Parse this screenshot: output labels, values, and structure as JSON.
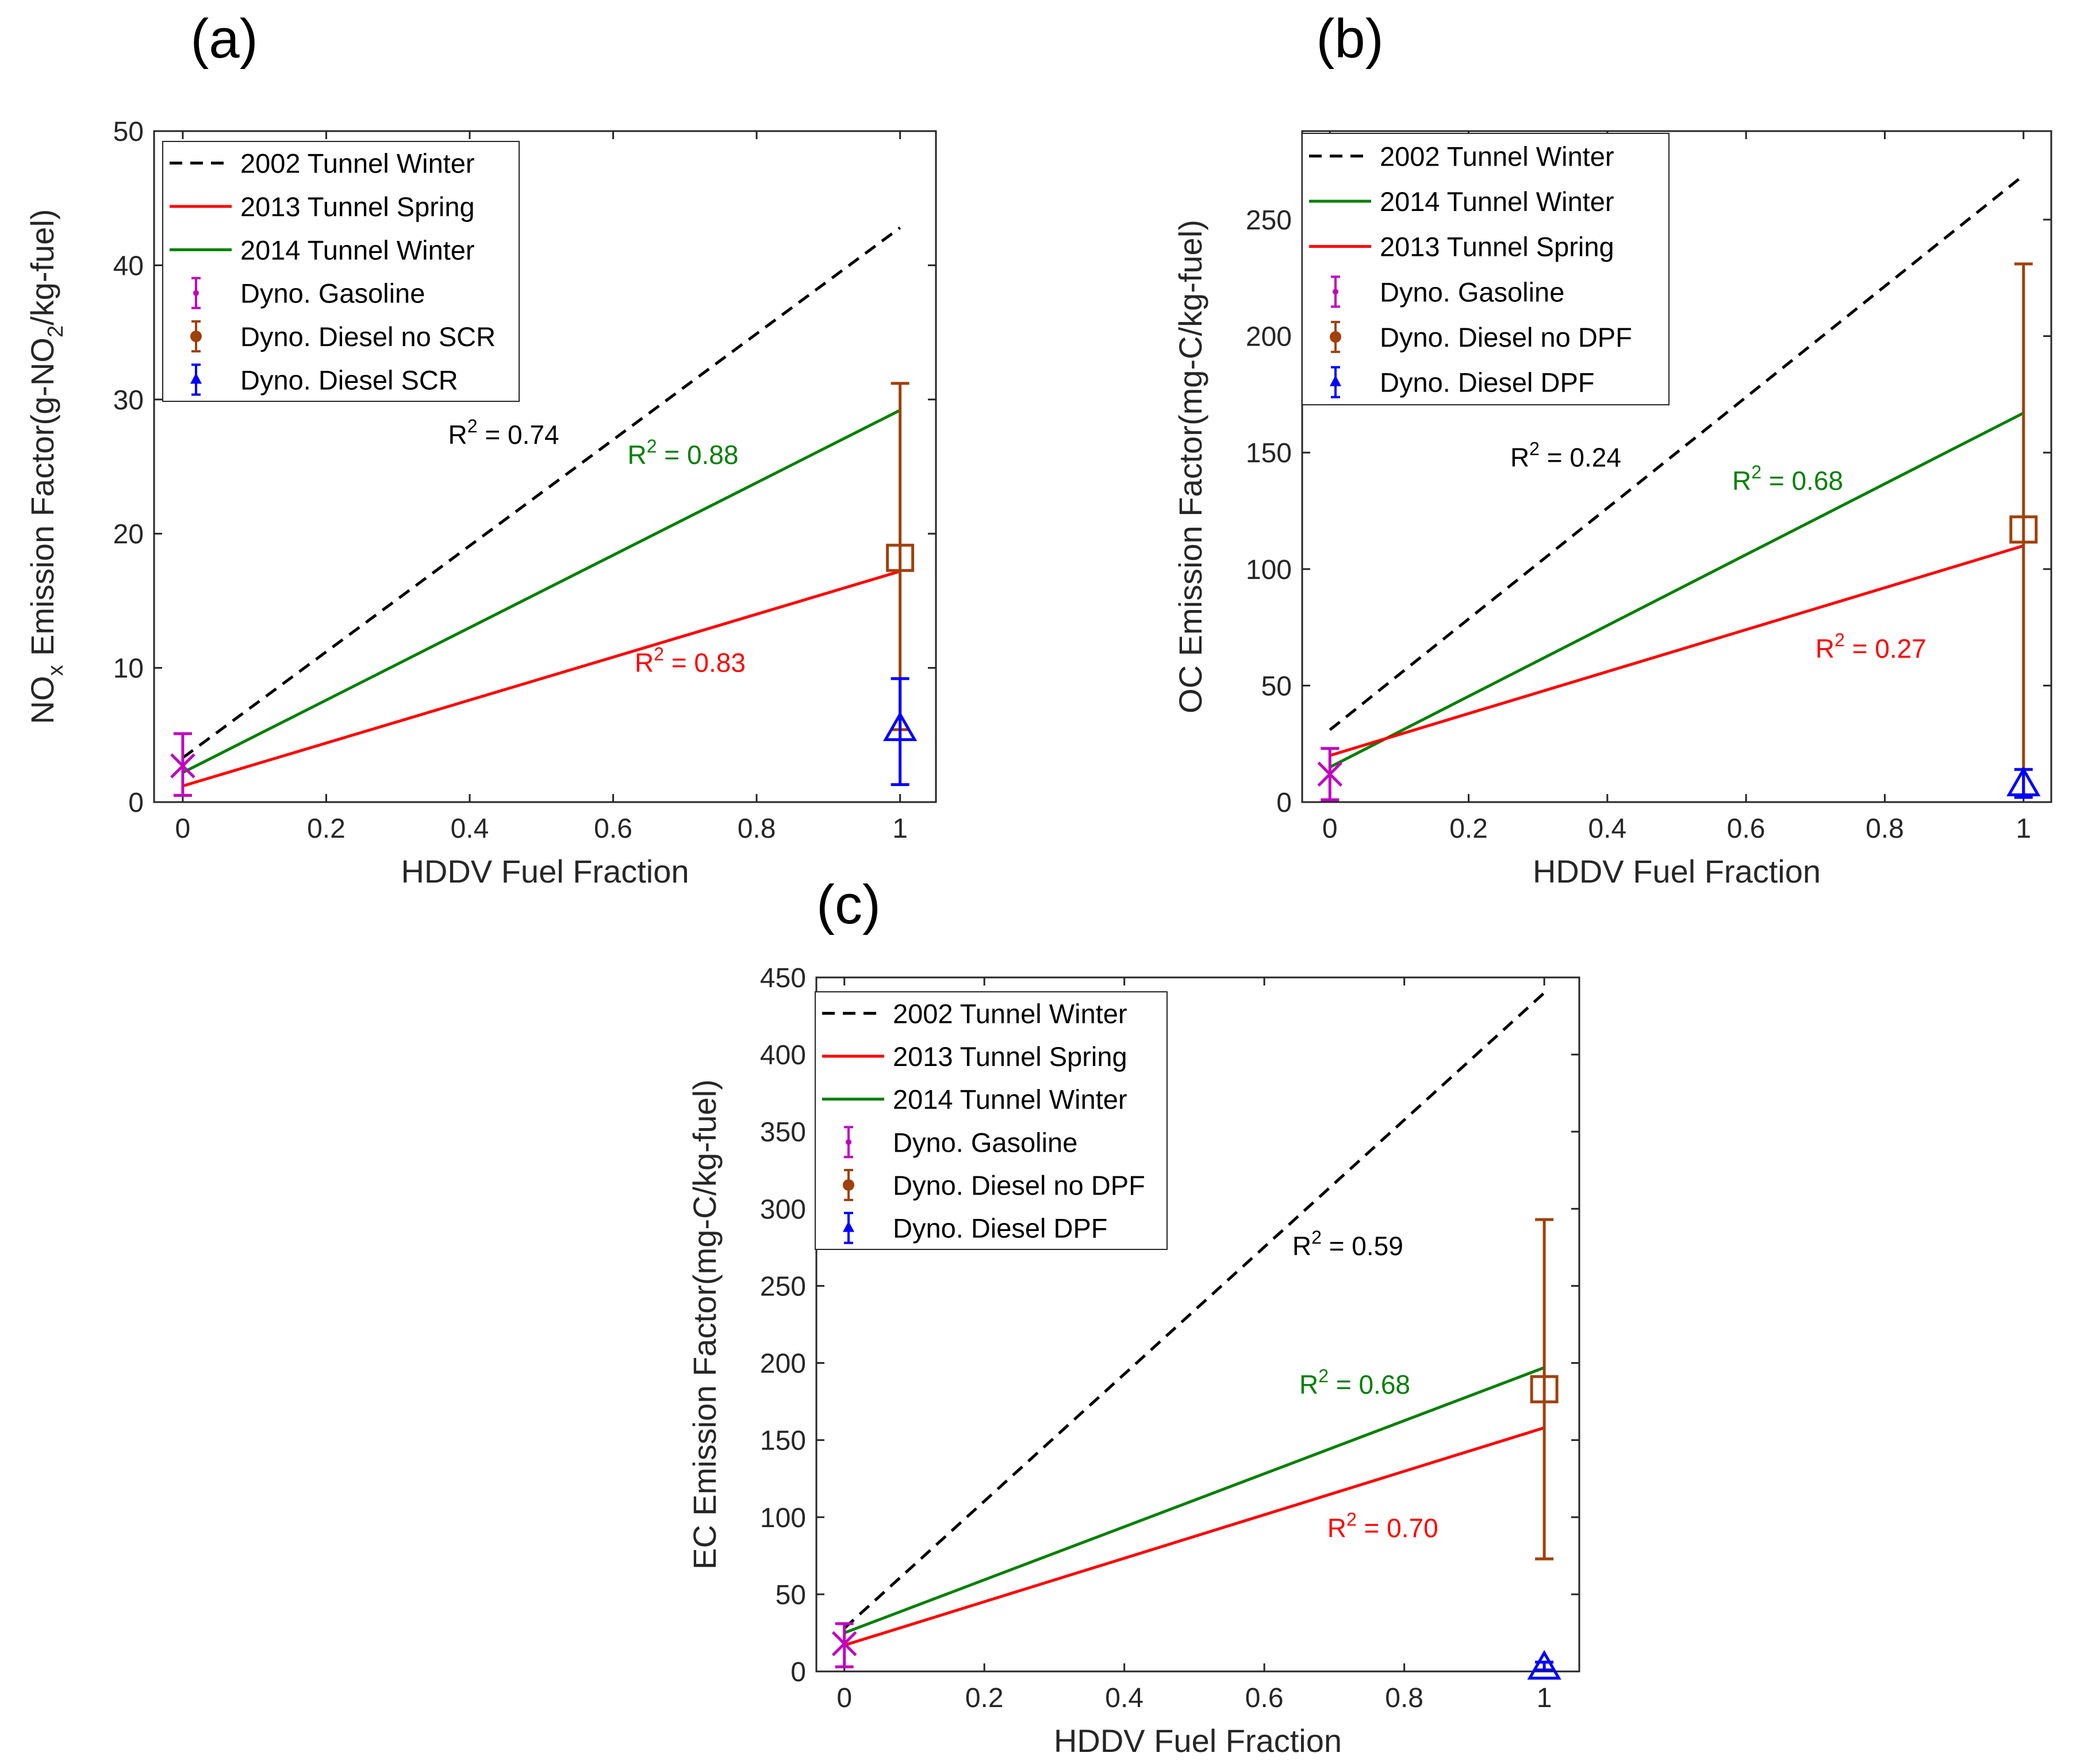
{
  "figure": {
    "panels": [
      "a",
      "b",
      "c"
    ]
  },
  "chart_data": [
    {
      "id": "a",
      "panel_label": "(a)",
      "type": "line",
      "xlabel": "HDDV Fuel Fraction",
      "ylabel_parts": {
        "pre": "NO",
        "sub1": "x",
        "mid": " Emission Factor(g-NO",
        "sub2": "2",
        "post": "/kg-fuel)"
      },
      "xlim": [
        -0.04,
        1.05
      ],
      "ylim": [
        0,
        50
      ],
      "xticks": [
        0,
        0.2,
        0.4,
        0.6,
        0.8,
        1
      ],
      "xtick_labels": [
        "0",
        "0.2",
        "0.4",
        "0.6",
        "0.8",
        "1"
      ],
      "yticks": [
        0,
        10,
        20,
        30,
        40,
        50
      ],
      "ytick_labels": [
        "0",
        "10",
        "20",
        "30",
        "40",
        "50"
      ],
      "grid": false,
      "legend_position": "top-left",
      "lines": [
        {
          "name": "2002 Tunnel Winter",
          "color": "#000000",
          "dash": true,
          "x": [
            0,
            1
          ],
          "y": [
            3.3,
            42.8
          ],
          "r2": {
            "label": "R",
            "sup": "2",
            "text": " = 0.74",
            "at": [
              0.37,
              26.7
            ]
          }
        },
        {
          "name": "2013 Tunnel Spring",
          "color": "#ff0000",
          "dash": false,
          "x": [
            0,
            1
          ],
          "y": [
            1.2,
            17.2
          ],
          "r2": {
            "label": "R",
            "sup": "2",
            "text": " = 0.83",
            "at": [
              0.63,
              9.7
            ]
          }
        },
        {
          "name": "2014 Tunnel Winter",
          "color": "#008000",
          "dash": false,
          "x": [
            0,
            1
          ],
          "y": [
            2.2,
            29.2
          ],
          "r2": {
            "label": "R",
            "sup": "2",
            "text": " = 0.88",
            "at": [
              0.62,
              25.2
            ]
          }
        }
      ],
      "points": [
        {
          "name": "Dyno. Gasoline",
          "color": "#c000c0",
          "marker": "x",
          "x": 0,
          "y": 2.7,
          "lo": 0.5,
          "hi": 5.1
        },
        {
          "name": "Dyno. Diesel no SCR",
          "color": "#a0400a",
          "marker": "square",
          "x": 1,
          "y": 18.2,
          "lo": 5.4,
          "hi": 31.2
        },
        {
          "name": "Dyno. Diesel SCR",
          "color": "#0000ff",
          "marker": "triangle",
          "x": 1,
          "y": 5.5,
          "lo": 1.3,
          "hi": 9.2
        }
      ],
      "legend": [
        "2002 Tunnel Winter",
        "2013 Tunnel Spring",
        "2014 Tunnel Winter",
        "Dyno. Gasoline",
        "Dyno. Diesel no SCR",
        "Dyno. Diesel SCR"
      ]
    },
    {
      "id": "b",
      "panel_label": "(b)",
      "type": "line",
      "xlabel": "HDDV Fuel Fraction",
      "ylabel_parts": {
        "pre": "OC Emission Factor(mg-C/kg-fuel)"
      },
      "xlim": [
        -0.04,
        1.04
      ],
      "ylim": [
        0,
        288
      ],
      "xticks": [
        0,
        0.2,
        0.4,
        0.6,
        0.8,
        1
      ],
      "xtick_labels": [
        "0",
        "0.2",
        "0.4",
        "0.6",
        "0.8",
        "1"
      ],
      "yticks": [
        0,
        50,
        100,
        150,
        200,
        250
      ],
      "ytick_labels": [
        "0",
        "50",
        "100",
        "150",
        "200",
        "250"
      ],
      "grid": false,
      "legend_position": "top-left",
      "lines": [
        {
          "name": "2002 Tunnel Winter",
          "color": "#000000",
          "dash": true,
          "x": [
            0,
            1
          ],
          "y": [
            31,
            269
          ],
          "r2": {
            "label": "R",
            "sup": "2",
            "text": " = 0.24",
            "at": [
              0.26,
              144
            ]
          }
        },
        {
          "name": "2014 Tunnel Winter",
          "color": "#008000",
          "dash": false,
          "x": [
            0,
            1
          ],
          "y": [
            15,
            167
          ],
          "r2": {
            "label": "R",
            "sup": "2",
            "text": " = 0.68",
            "at": [
              0.58,
              134
            ]
          }
        },
        {
          "name": "2013 Tunnel Spring",
          "color": "#ff0000",
          "dash": false,
          "x": [
            0,
            1
          ],
          "y": [
            20,
            110
          ],
          "r2": {
            "label": "R",
            "sup": "2",
            "text": " = 0.27",
            "at": [
              0.7,
              62
            ]
          }
        }
      ],
      "points": [
        {
          "name": "Dyno. Gasoline",
          "color": "#c000c0",
          "marker": "x",
          "x": 0,
          "y": 12,
          "lo": 1,
          "hi": 23
        },
        {
          "name": "Dyno. Diesel no DPF",
          "color": "#a0400a",
          "marker": "square",
          "x": 1,
          "y": 117,
          "lo": 3,
          "hi": 231
        },
        {
          "name": "Dyno. Diesel DPF",
          "color": "#0000ff",
          "marker": "triangle",
          "x": 1,
          "y": 8,
          "lo": 2,
          "hi": 14
        }
      ],
      "legend": [
        "2002 Tunnel Winter",
        "2014 Tunnel Winter",
        "2013 Tunnel Spring",
        "Dyno. Gasoline",
        "Dyno. Diesel no DPF",
        "Dyno. Diesel DPF"
      ]
    },
    {
      "id": "c",
      "panel_label": "(c)",
      "type": "line",
      "xlabel": "HDDV Fuel Fraction",
      "ylabel_parts": {
        "pre": "EC Emission Factor(mg-C/kg-fuel)"
      },
      "xlim": [
        -0.04,
        1.05
      ],
      "ylim": [
        0,
        450
      ],
      "xticks": [
        0,
        0.2,
        0.4,
        0.6,
        0.8,
        1
      ],
      "xtick_labels": [
        "0",
        "0.2",
        "0.4",
        "0.6",
        "0.8",
        "1"
      ],
      "yticks": [
        0,
        50,
        100,
        150,
        200,
        250,
        300,
        350,
        400,
        450
      ],
      "ytick_labels": [
        "0",
        "50",
        "100",
        "150",
        "200",
        "250",
        "300",
        "350",
        "400",
        "450"
      ],
      "grid": false,
      "legend_position": "top-left",
      "lines": [
        {
          "name": "2002 Tunnel Winter",
          "color": "#000000",
          "dash": true,
          "x": [
            0,
            1
          ],
          "y": [
            28,
            440
          ],
          "r2": {
            "label": "R",
            "sup": "2",
            "text": " = 0.59",
            "at": [
              0.64,
              270
            ]
          }
        },
        {
          "name": "2013 Tunnel Spring",
          "color": "#ff0000",
          "dash": false,
          "x": [
            0,
            1
          ],
          "y": [
            17,
            158
          ],
          "r2": {
            "label": "R",
            "sup": "2",
            "text": " = 0.70",
            "at": [
              0.69,
              87
            ]
          }
        },
        {
          "name": "2014 Tunnel Winter",
          "color": "#008000",
          "dash": false,
          "x": [
            0,
            1
          ],
          "y": [
            25,
            197
          ],
          "r2": {
            "label": "R",
            "sup": "2",
            "text": " = 0.68",
            "at": [
              0.65,
              180
            ]
          }
        }
      ],
      "points": [
        {
          "name": "Dyno. Gasoline",
          "color": "#c000c0",
          "marker": "x",
          "x": 0,
          "y": 18,
          "lo": 3,
          "hi": 31
        },
        {
          "name": "Dyno. Diesel no DPF",
          "color": "#a0400a",
          "marker": "square",
          "x": 1,
          "y": 183,
          "lo": 73,
          "hi": 293
        },
        {
          "name": "Dyno. Diesel DPF",
          "color": "#0000ff",
          "marker": "triangle",
          "x": 1,
          "y": 3,
          "lo": 1,
          "hi": 6
        }
      ],
      "legend": [
        "2002 Tunnel Winter",
        "2013 Tunnel Spring",
        "2014 Tunnel Winter",
        "Dyno. Gasoline",
        "Dyno. Diesel no DPF",
        "Dyno. Diesel DPF"
      ]
    }
  ]
}
